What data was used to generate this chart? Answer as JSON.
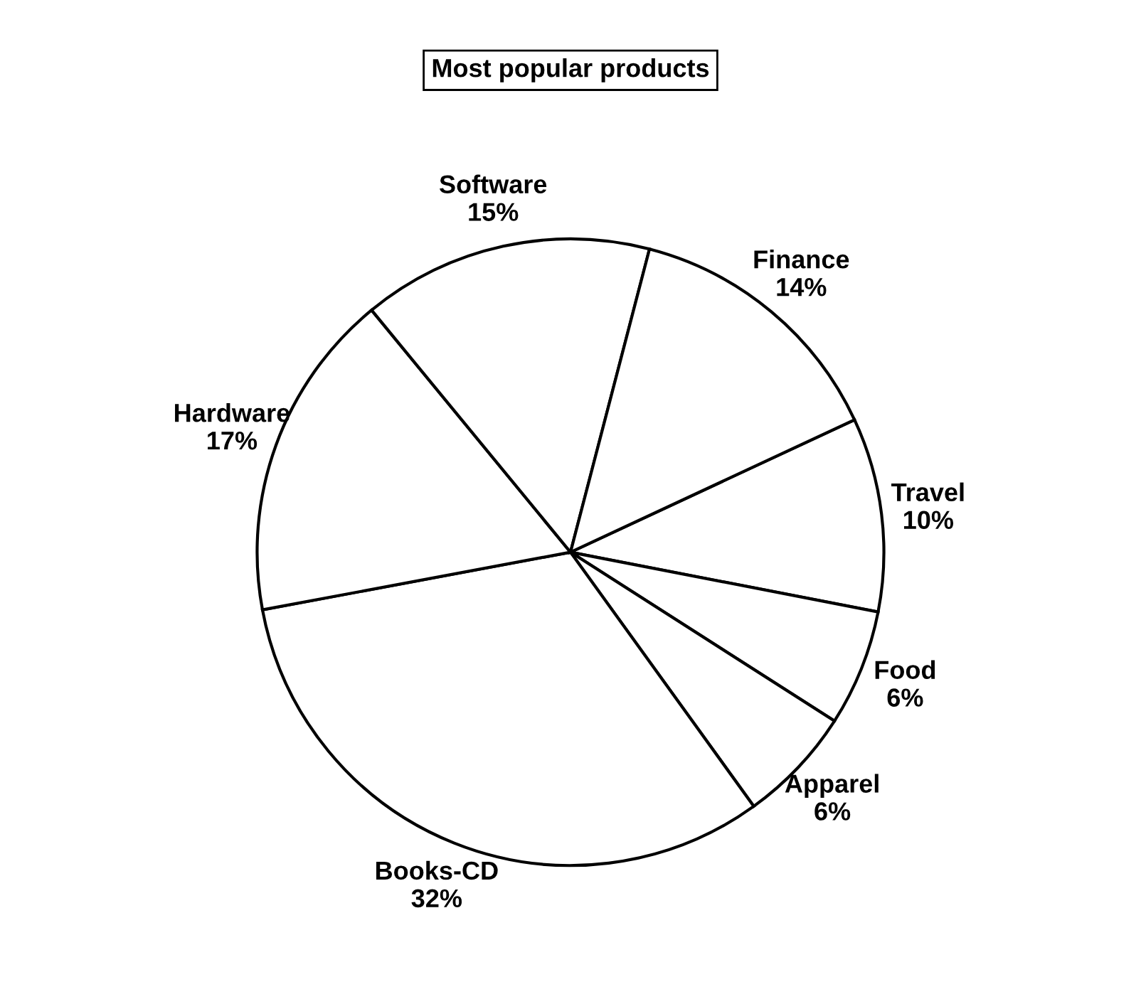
{
  "chart_data": {
    "type": "pie",
    "title": "Most popular products",
    "categories": [
      "Travel",
      "Food",
      "Apparel",
      "Books-CD",
      "Hardware",
      "Software",
      "Finance"
    ],
    "values": [
      10,
      6,
      6,
      32,
      17,
      15,
      14
    ],
    "value_labels": [
      "10%",
      "6%",
      "6%",
      "32%",
      "17%",
      "15%",
      "14%"
    ],
    "colors": [
      "#ffffff",
      "#ffffff",
      "#ffffff",
      "#ffffff",
      "#ffffff",
      "#ffffff",
      "#ffffff"
    ],
    "legend": false
  }
}
